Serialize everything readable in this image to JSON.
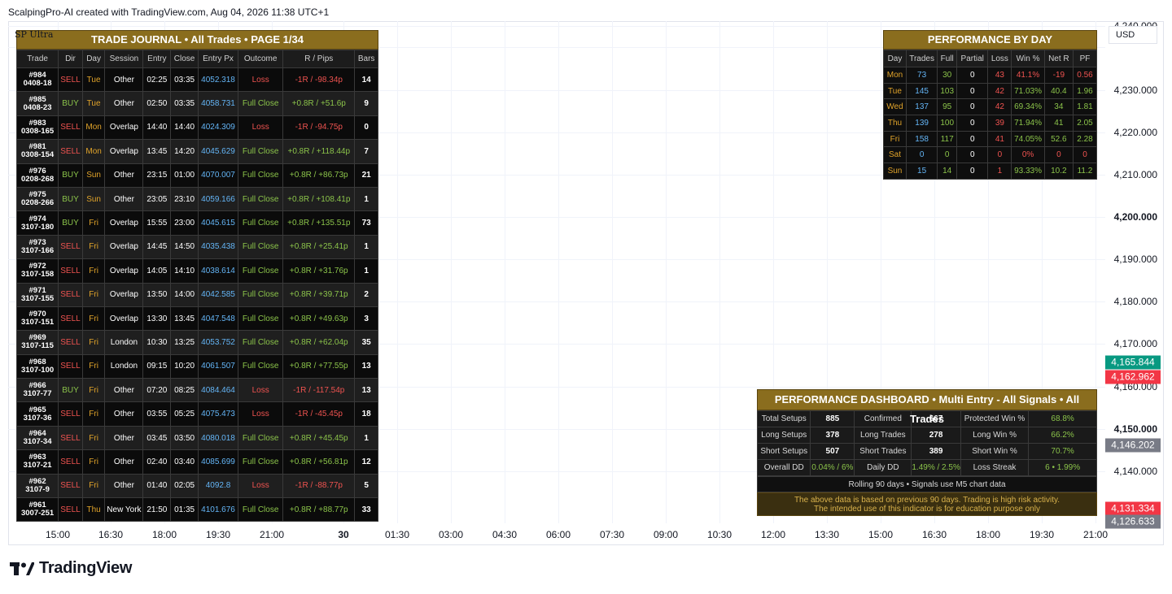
{
  "header": {
    "text": "ScalpingPro-AI created with TradingView.com, Aug 04, 2026 11:38 UTC+1"
  },
  "chart": {
    "symbol": "SP Ultra",
    "currency": "USD",
    "price_labels": [
      {
        "text": "4,240.000",
        "y": 32,
        "bold": false
      },
      {
        "text": "4,230.000",
        "y": 111,
        "bold": false
      },
      {
        "text": "4,220.000",
        "y": 163,
        "bold": false
      },
      {
        "text": "4,210.000",
        "y": 215,
        "bold": false
      },
      {
        "text": "4,200.000",
        "y": 267,
        "bold": true
      },
      {
        "text": "4,190.000",
        "y": 319,
        "bold": false
      },
      {
        "text": "4,180.000",
        "y": 371,
        "bold": false
      },
      {
        "text": "4,170.000",
        "y": 423,
        "bold": false
      },
      {
        "text": "4,160.000",
        "y": 476,
        "bold": false
      },
      {
        "text": "4,150.000",
        "y": 528,
        "bold": true
      },
      {
        "text": "4,140.000",
        "y": 580,
        "bold": false
      }
    ],
    "price_badges": [
      {
        "text": "4,165.844",
        "y": 446,
        "color": "#089981"
      },
      {
        "text": "4,162.962",
        "y": 464,
        "color": "#f23645"
      },
      {
        "text": "4,146.202",
        "y": 548,
        "color": "#787b86"
      },
      {
        "text": "4,131.334",
        "y": 626,
        "color": "#f23645"
      },
      {
        "text": "4,126.633",
        "y": 642,
        "color": "#787b86"
      }
    ],
    "time_labels": [
      {
        "text": "15:00",
        "x": 61,
        "bold": false
      },
      {
        "text": "16:30",
        "x": 126,
        "bold": false
      },
      {
        "text": "18:00",
        "x": 192,
        "bold": false
      },
      {
        "text": "19:30",
        "x": 258,
        "bold": false
      },
      {
        "text": "21:00",
        "x": 324,
        "bold": false
      },
      {
        "text": "30",
        "x": 412,
        "bold": true
      },
      {
        "text": "01:30",
        "x": 478,
        "bold": false
      },
      {
        "text": "03:00",
        "x": 544,
        "bold": false
      },
      {
        "text": "04:30",
        "x": 610,
        "bold": false
      },
      {
        "text": "06:00",
        "x": 676,
        "bold": false
      },
      {
        "text": "07:30",
        "x": 742,
        "bold": false
      },
      {
        "text": "09:00",
        "x": 808,
        "bold": false
      },
      {
        "text": "10:30",
        "x": 874,
        "bold": false
      },
      {
        "text": "12:00",
        "x": 940,
        "bold": false
      },
      {
        "text": "13:30",
        "x": 1006,
        "bold": false
      },
      {
        "text": "15:00",
        "x": 1072,
        "bold": false
      },
      {
        "text": "16:30",
        "x": 1138,
        "bold": false
      },
      {
        "text": "18:00",
        "x": 1204,
        "bold": false
      },
      {
        "text": "19:30",
        "x": 1270,
        "bold": false
      },
      {
        "text": "21:00",
        "x": 1336,
        "bold": false
      }
    ]
  },
  "journal": {
    "title": "TRADE JOURNAL  •  All Trades  •  PAGE 1/34",
    "columns": [
      "Trade",
      "Dir",
      "Day",
      "Session",
      "Entry",
      "Close",
      "Entry Px",
      "Outcome",
      "R / Pips",
      "Bars"
    ],
    "rows": [
      {
        "id": "#984",
        "ref": "0408-18",
        "dir": "SELL",
        "day": "Tue",
        "session": "Other",
        "entry": "02:25",
        "close": "03:35",
        "px": "4052.318",
        "outcome": "Loss",
        "r": "-1R / -98.34p",
        "bars": "14"
      },
      {
        "id": "#985",
        "ref": "0408-23",
        "dir": "BUY",
        "day": "Tue",
        "session": "Other",
        "entry": "02:50",
        "close": "03:35",
        "px": "4058.731",
        "outcome": "Full Close",
        "r": "+0.8R / +51.6p",
        "bars": "9"
      },
      {
        "id": "#983",
        "ref": "0308-165",
        "dir": "SELL",
        "day": "Mon",
        "session": "Overlap",
        "entry": "14:40",
        "close": "14:40",
        "px": "4024.309",
        "outcome": "Loss",
        "r": "-1R / -94.75p",
        "bars": "0"
      },
      {
        "id": "#981",
        "ref": "0308-154",
        "dir": "SELL",
        "day": "Mon",
        "session": "Overlap",
        "entry": "13:45",
        "close": "14:20",
        "px": "4045.629",
        "outcome": "Full Close",
        "r": "+0.8R / +118.44p",
        "bars": "7"
      },
      {
        "id": "#976",
        "ref": "0208-268",
        "dir": "BUY",
        "day": "Sun",
        "session": "Other",
        "entry": "23:15",
        "close": "01:00",
        "px": "4070.007",
        "outcome": "Full Close",
        "r": "+0.8R / +86.73p",
        "bars": "21"
      },
      {
        "id": "#975",
        "ref": "0208-266",
        "dir": "BUY",
        "day": "Sun",
        "session": "Other",
        "entry": "23:05",
        "close": "23:10",
        "px": "4059.166",
        "outcome": "Full Close",
        "r": "+0.8R / +108.41p",
        "bars": "1"
      },
      {
        "id": "#974",
        "ref": "3107-180",
        "dir": "BUY",
        "day": "Fri",
        "session": "Overlap",
        "entry": "15:55",
        "close": "23:00",
        "px": "4045.615",
        "outcome": "Full Close",
        "r": "+0.8R / +135.51p",
        "bars": "73"
      },
      {
        "id": "#973",
        "ref": "3107-166",
        "dir": "SELL",
        "day": "Fri",
        "session": "Overlap",
        "entry": "14:45",
        "close": "14:50",
        "px": "4035.438",
        "outcome": "Full Close",
        "r": "+0.8R / +25.41p",
        "bars": "1"
      },
      {
        "id": "#972",
        "ref": "3107-158",
        "dir": "SELL",
        "day": "Fri",
        "session": "Overlap",
        "entry": "14:05",
        "close": "14:10",
        "px": "4038.614",
        "outcome": "Full Close",
        "r": "+0.8R / +31.76p",
        "bars": "1"
      },
      {
        "id": "#971",
        "ref": "3107-155",
        "dir": "SELL",
        "day": "Fri",
        "session": "Overlap",
        "entry": "13:50",
        "close": "14:00",
        "px": "4042.585",
        "outcome": "Full Close",
        "r": "+0.8R / +39.71p",
        "bars": "2"
      },
      {
        "id": "#970",
        "ref": "3107-151",
        "dir": "SELL",
        "day": "Fri",
        "session": "Overlap",
        "entry": "13:30",
        "close": "13:45",
        "px": "4047.548",
        "outcome": "Full Close",
        "r": "+0.8R / +49.63p",
        "bars": "3"
      },
      {
        "id": "#969",
        "ref": "3107-115",
        "dir": "SELL",
        "day": "Fri",
        "session": "London",
        "entry": "10:30",
        "close": "13:25",
        "px": "4053.752",
        "outcome": "Full Close",
        "r": "+0.8R / +62.04p",
        "bars": "35"
      },
      {
        "id": "#968",
        "ref": "3107-100",
        "dir": "SELL",
        "day": "Fri",
        "session": "London",
        "entry": "09:15",
        "close": "10:20",
        "px": "4061.507",
        "outcome": "Full Close",
        "r": "+0.8R / +77.55p",
        "bars": "13"
      },
      {
        "id": "#966",
        "ref": "3107-77",
        "dir": "BUY",
        "day": "Fri",
        "session": "Other",
        "entry": "07:20",
        "close": "08:25",
        "px": "4084.464",
        "outcome": "Loss",
        "r": "-1R / -117.54p",
        "bars": "13"
      },
      {
        "id": "#965",
        "ref": "3107-36",
        "dir": "SELL",
        "day": "Fri",
        "session": "Other",
        "entry": "03:55",
        "close": "05:25",
        "px": "4075.473",
        "outcome": "Loss",
        "r": "-1R / -45.45p",
        "bars": "18"
      },
      {
        "id": "#964",
        "ref": "3107-34",
        "dir": "SELL",
        "day": "Fri",
        "session": "Other",
        "entry": "03:45",
        "close": "03:50",
        "px": "4080.018",
        "outcome": "Full Close",
        "r": "+0.8R / +45.45p",
        "bars": "1"
      },
      {
        "id": "#963",
        "ref": "3107-21",
        "dir": "SELL",
        "day": "Fri",
        "session": "Other",
        "entry": "02:40",
        "close": "03:40",
        "px": "4085.699",
        "outcome": "Full Close",
        "r": "+0.8R / +56.81p",
        "bars": "12"
      },
      {
        "id": "#962",
        "ref": "3107-9",
        "dir": "SELL",
        "day": "Fri",
        "session": "Other",
        "entry": "01:40",
        "close": "02:05",
        "px": "4092.8",
        "outcome": "Loss",
        "r": "-1R / -88.77p",
        "bars": "5"
      },
      {
        "id": "#961",
        "ref": "3007-251",
        "dir": "SELL",
        "day": "Thu",
        "session": "New York",
        "entry": "21:50",
        "close": "01:35",
        "px": "4101.676",
        "outcome": "Full Close",
        "r": "+0.8R / +88.77p",
        "bars": "33"
      }
    ]
  },
  "perf_day": {
    "title": "PERFORMANCE BY DAY",
    "columns": [
      "Day",
      "Trades",
      "Full",
      "Partial",
      "Loss",
      "Win %",
      "Net R",
      "PF"
    ],
    "rows": [
      {
        "day": "Mon",
        "trades": "73",
        "full": "30",
        "partial": "0",
        "loss": "43",
        "win": "41.1%",
        "net": "-19",
        "pf": "0.56",
        "neg": true
      },
      {
        "day": "Tue",
        "trades": "145",
        "full": "103",
        "partial": "0",
        "loss": "42",
        "win": "71.03%",
        "net": "40.4",
        "pf": "1.96",
        "neg": false
      },
      {
        "day": "Wed",
        "trades": "137",
        "full": "95",
        "partial": "0",
        "loss": "42",
        "win": "69.34%",
        "net": "34",
        "pf": "1.81",
        "neg": false
      },
      {
        "day": "Thu",
        "trades": "139",
        "full": "100",
        "partial": "0",
        "loss": "39",
        "win": "71.94%",
        "net": "41",
        "pf": "2.05",
        "neg": false
      },
      {
        "day": "Fri",
        "trades": "158",
        "full": "117",
        "partial": "0",
        "loss": "41",
        "win": "74.05%",
        "net": "52.6",
        "pf": "2.28",
        "neg": false
      },
      {
        "day": "Sat",
        "trades": "0",
        "full": "0",
        "partial": "0",
        "loss": "0",
        "win": "0%",
        "net": "0",
        "pf": "0",
        "neg": true
      },
      {
        "day": "Sun",
        "trades": "15",
        "full": "14",
        "partial": "0",
        "loss": "1",
        "win": "93.33%",
        "net": "10.2",
        "pf": "11.2",
        "neg": false
      }
    ]
  },
  "dashboard": {
    "title": "PERFORMANCE DASHBOARD • Multi Entry - All Signals • All Trades",
    "rows": [
      [
        {
          "t": "Total Setups",
          "c": "lbl"
        },
        {
          "t": "885",
          "c": "val"
        },
        {
          "t": "Confirmed",
          "c": "lbl"
        },
        {
          "t": "667",
          "c": "val"
        },
        {
          "t": "Protected Win %",
          "c": "lbl"
        },
        {
          "t": "68.8%",
          "c": "valg"
        }
      ],
      [
        {
          "t": "Long Setups",
          "c": "lbl"
        },
        {
          "t": "378",
          "c": "val"
        },
        {
          "t": "Long Trades",
          "c": "lbl"
        },
        {
          "t": "278",
          "c": "val"
        },
        {
          "t": "Long Win %",
          "c": "lbl"
        },
        {
          "t": "66.2%",
          "c": "valg"
        }
      ],
      [
        {
          "t": "Short Setups",
          "c": "lbl"
        },
        {
          "t": "507",
          "c": "val"
        },
        {
          "t": "Short Trades",
          "c": "lbl"
        },
        {
          "t": "389",
          "c": "val"
        },
        {
          "t": "Short Win %",
          "c": "lbl"
        },
        {
          "t": "70.7%",
          "c": "valg"
        }
      ],
      [
        {
          "t": "Overall DD",
          "c": "lbl"
        },
        {
          "t": "0.04% / 6%",
          "c": "valg"
        },
        {
          "t": "Daily DD",
          "c": "lbl"
        },
        {
          "t": "1.49% / 2.5%",
          "c": "valg"
        },
        {
          "t": "Loss Streak",
          "c": "lbl"
        },
        {
          "t": "6 • 1.99%",
          "c": "valg"
        }
      ]
    ],
    "rolling": "Rolling 90 days • Signals use M5 chart data",
    "disclaimer1": "The above data is based on previous 90 days. Trading is high risk activity.",
    "disclaimer2": "The intended use of this indicator is for education purpose only"
  },
  "footer": {
    "brand": "TradingView"
  }
}
